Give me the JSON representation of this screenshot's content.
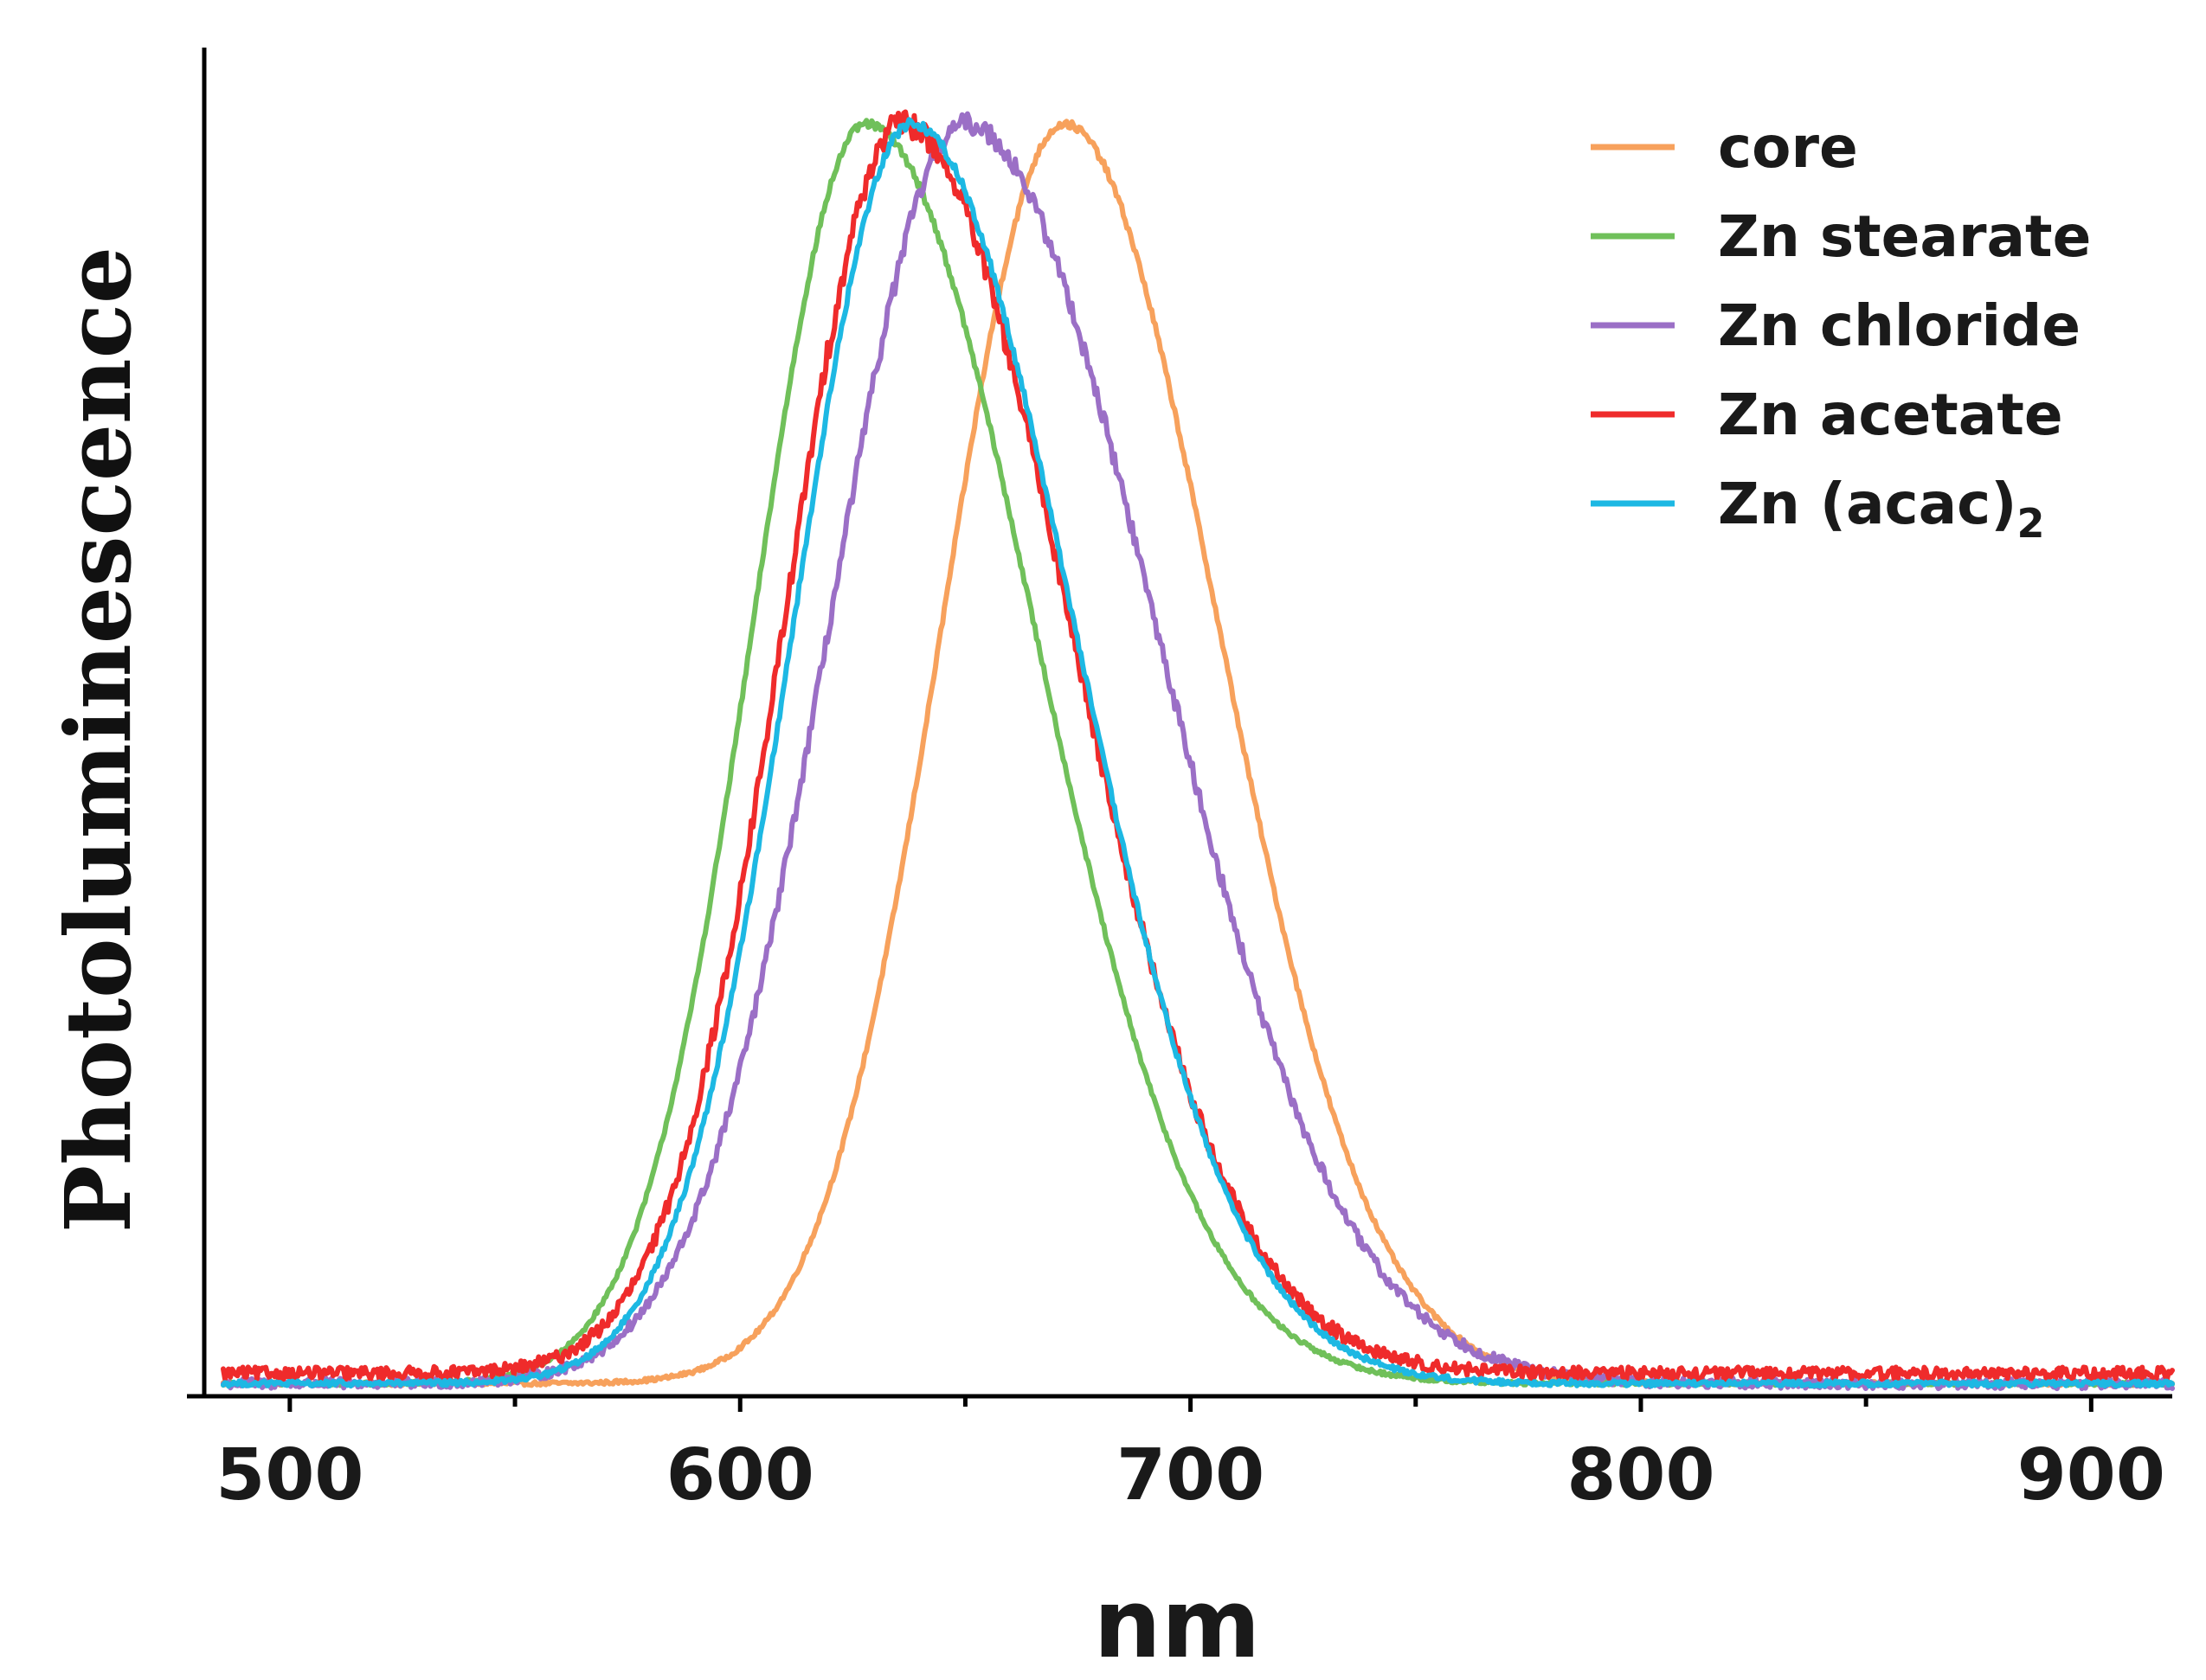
{
  "chart_data": {
    "type": "line",
    "title": "",
    "xlabel": "nm",
    "ylabel": "Photoluminescence",
    "xlim": [
      481,
      918
    ],
    "ylim": [
      0,
      1.06
    ],
    "x_ticks": [
      500,
      600,
      700,
      800,
      900
    ],
    "x_minor_ticks": [
      550,
      650,
      750,
      850
    ],
    "grid": false,
    "legend_position": "top-right",
    "series": [
      {
        "name": "core",
        "color": "#f7a15c",
        "peak": 672,
        "width_left": 27,
        "width_right": 34,
        "baseline": 0.01,
        "noise": 0.003
      },
      {
        "name": "Zn stearate",
        "color": "#70c05a",
        "peak": 628,
        "width_left": 25,
        "width_right": 37,
        "baseline": 0.01,
        "noise": 0.003
      },
      {
        "name": "Zn chloride",
        "color": "#9b6fc6",
        "peak": 650,
        "width_left": 30,
        "width_right": 42,
        "baseline": 0.01,
        "noise": 0.008
      },
      {
        "name": "Zn acetate",
        "color": "#ef2b2b",
        "peak": 636,
        "width_left": 26,
        "width_right": 37,
        "baseline": 0.018,
        "noise": 0.01
      },
      {
        "name": "Zn (acac)",
        "name_subscript": "2",
        "color": "#1db8e3",
        "peak": 638,
        "width_left": 26,
        "width_right": 36,
        "baseline": 0.01,
        "noise": 0.004
      }
    ]
  }
}
